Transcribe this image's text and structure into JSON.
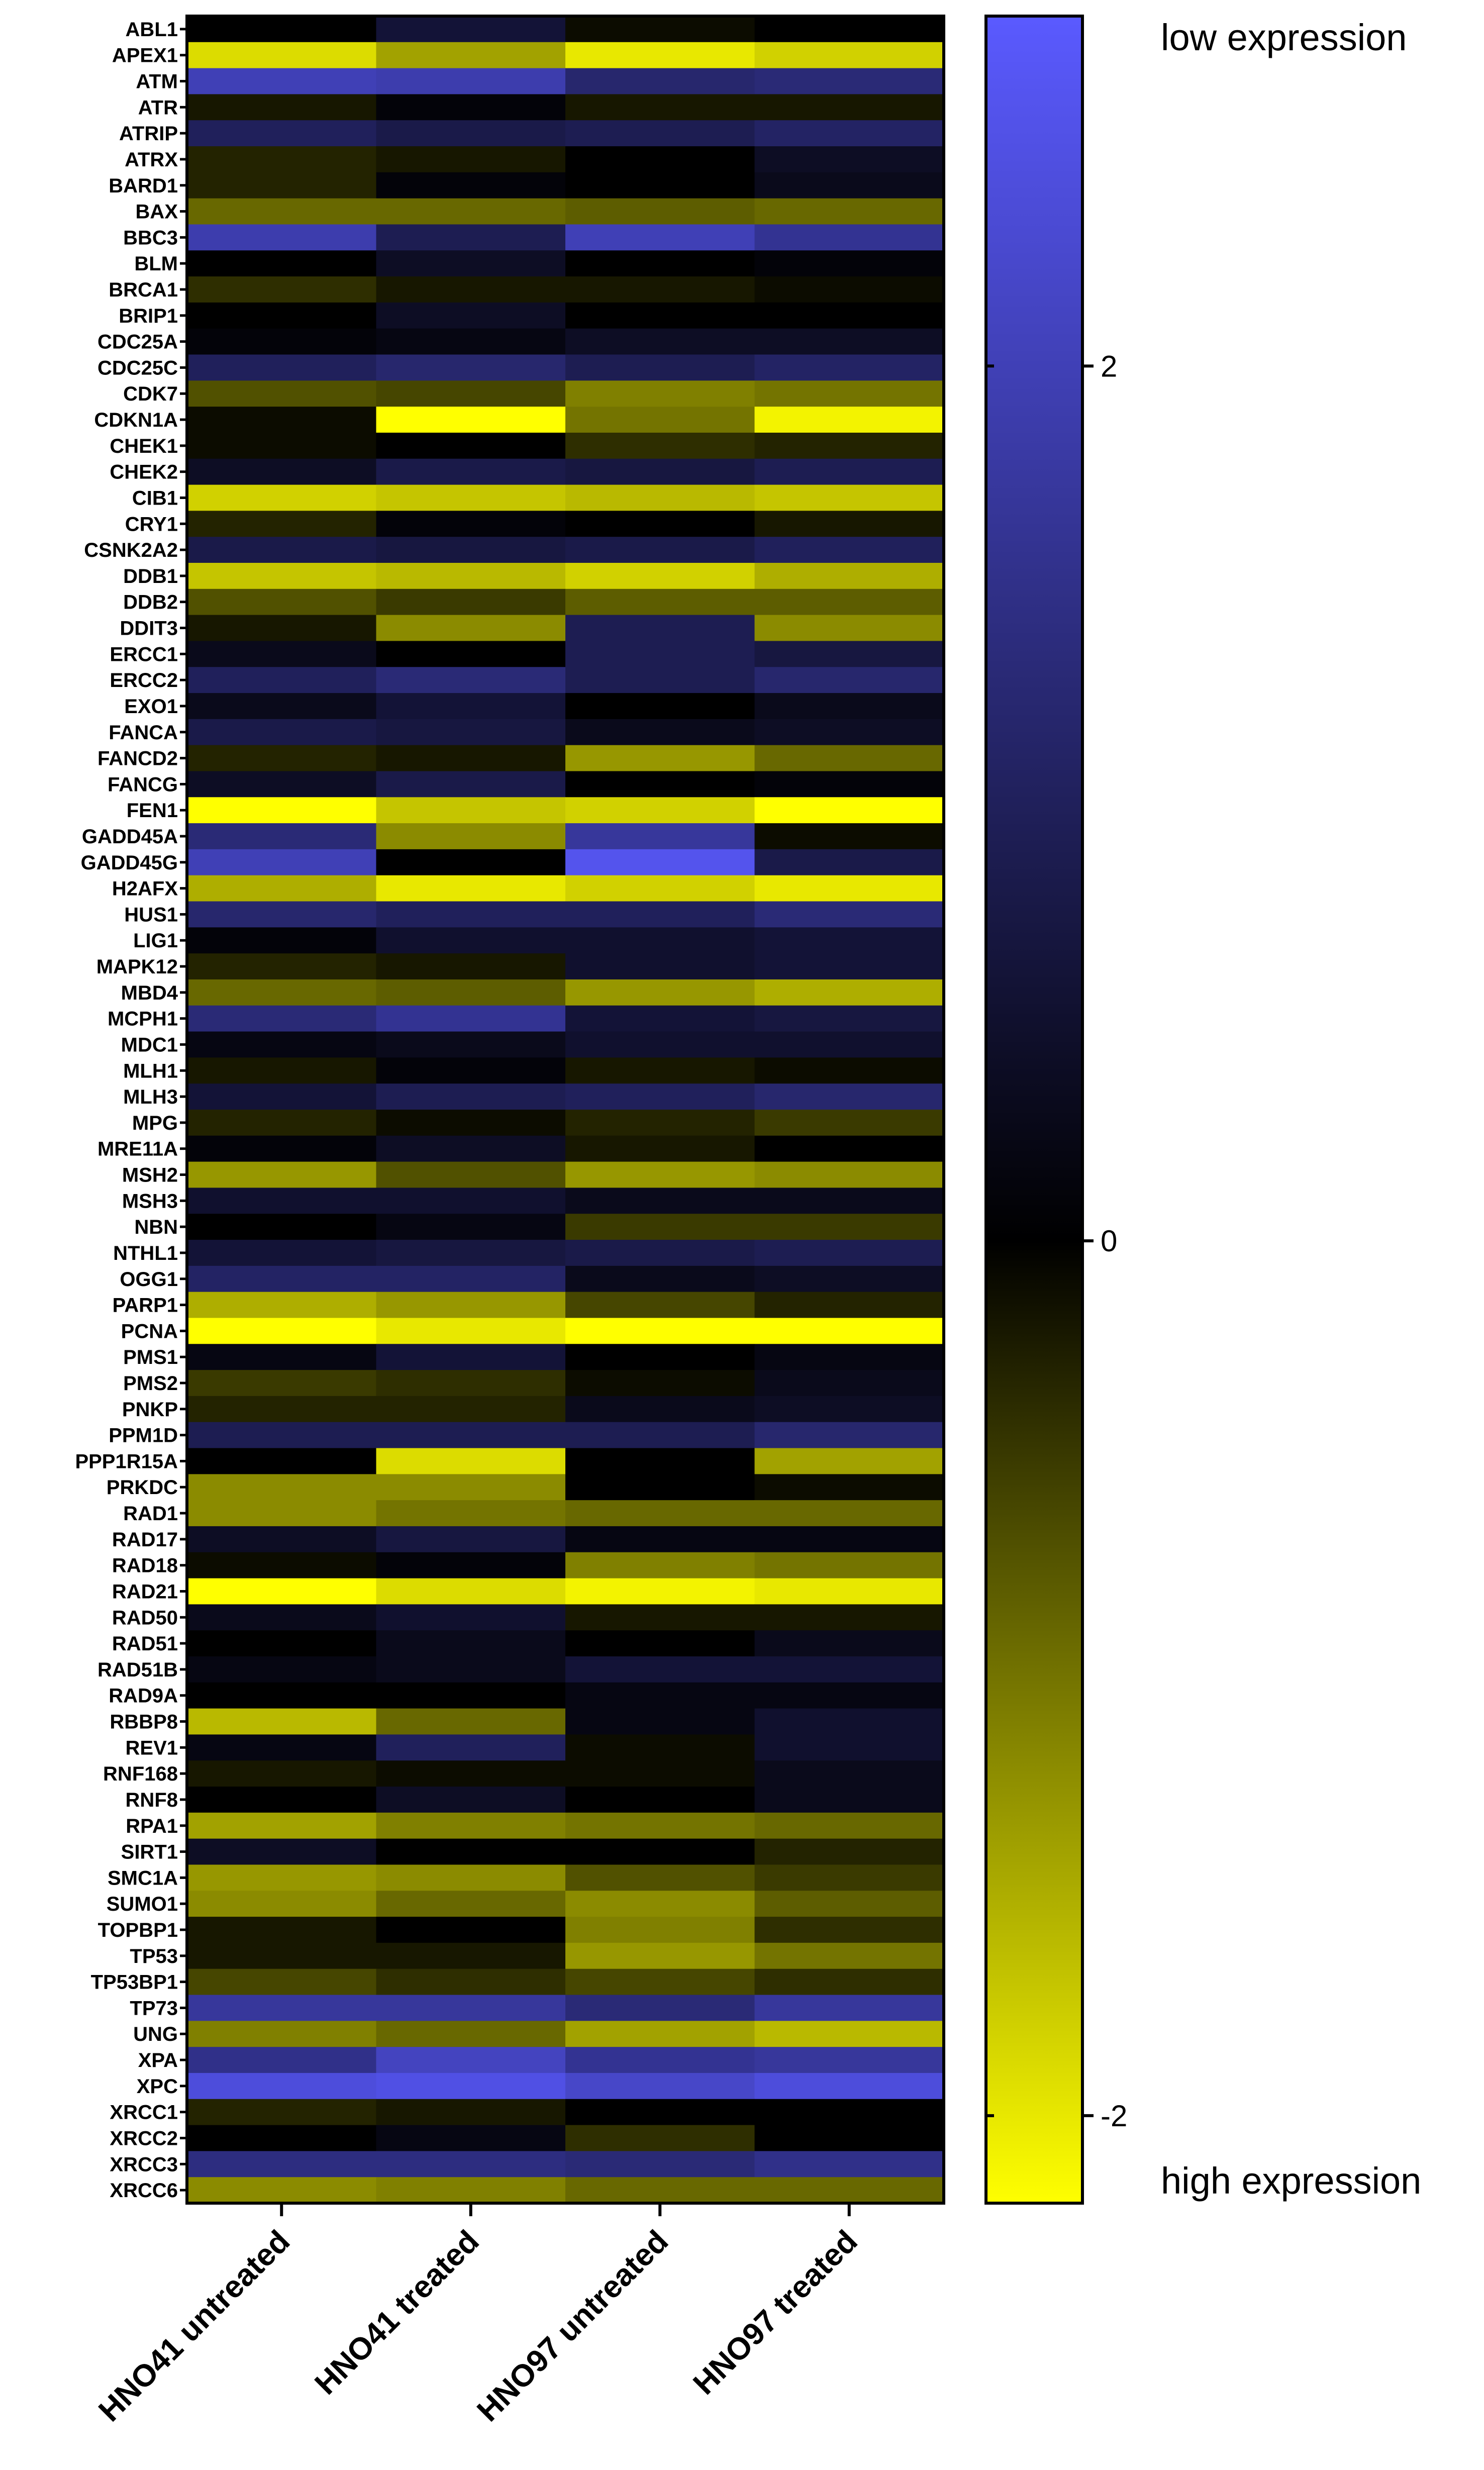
{
  "chart_data": {
    "type": "heatmap",
    "columns": [
      "HNO41 untreated",
      "HNO41 treated",
      "HNO97 untreated",
      "HNO97 treated"
    ],
    "rows": [
      "ABL1",
      "APEX1",
      "ATM",
      "ATR",
      "ATRIP",
      "ATRX",
      "BARD1",
      "BAX",
      "BBC3",
      "BLM",
      "BRCA1",
      "BRIP1",
      "CDC25A",
      "CDC25C",
      "CDK7",
      "CDKN1A",
      "CHEK1",
      "CHEK2",
      "CIB1",
      "CRY1",
      "CSNK2A2",
      "DDB1",
      "DDB2",
      "DDIT3",
      "ERCC1",
      "ERCC2",
      "EXO1",
      "FANCA",
      "FANCD2",
      "FANCG",
      "FEN1",
      "GADD45A",
      "GADD45G",
      "H2AFX",
      "HUS1",
      "LIG1",
      "MAPK12",
      "MBD4",
      "MCPH1",
      "MDC1",
      "MLH1",
      "MLH3",
      "MPG",
      "MRE11A",
      "MSH2",
      "MSH3",
      "NBN",
      "NTHL1",
      "OGG1",
      "PARP1",
      "PCNA",
      "PMS1",
      "PMS2",
      "PNKP",
      "PPM1D",
      "PPP1R15A",
      "PRKDC",
      "RAD1",
      "RAD17",
      "RAD18",
      "RAD21",
      "RAD50",
      "RAD51",
      "RAD51B",
      "RAD9A",
      "RBBP8",
      "REV1",
      "RNF168",
      "RNF8",
      "RPA1",
      "SIRT1",
      "SMC1A",
      "SUMO1",
      "TOPBP1",
      "TP53",
      "TP53BP1",
      "TP73",
      "UNG",
      "XPA",
      "XPC",
      "XRCC1",
      "XRCC2",
      "XRCC3",
      "XRCC6"
    ],
    "values": [
      [
        0.0,
        0.6,
        -0.1,
        0.0
      ],
      [
        -1.9,
        -1.4,
        -2.0,
        -1.8
      ],
      [
        2.0,
        1.9,
        1.2,
        1.3
      ],
      [
        -0.2,
        0.1,
        -0.2,
        -0.2
      ],
      [
        1.0,
        0.8,
        0.9,
        1.1
      ],
      [
        -0.3,
        -0.2,
        0.0,
        0.4
      ],
      [
        -0.3,
        0.1,
        0.0,
        0.3
      ],
      [
        -0.9,
        -0.9,
        -0.8,
        -0.9
      ],
      [
        1.9,
        0.9,
        2.0,
        1.6
      ],
      [
        0.0,
        0.4,
        0.0,
        0.1
      ],
      [
        -0.4,
        -0.2,
        -0.2,
        -0.1
      ],
      [
        0.0,
        0.4,
        0.0,
        0.0
      ],
      [
        0.1,
        0.2,
        0.4,
        0.4
      ],
      [
        1.0,
        1.2,
        0.9,
        1.1
      ],
      [
        -0.7,
        -0.6,
        -1.1,
        -1.0
      ],
      [
        -0.1,
        -2.2,
        -1.0,
        -2.1
      ],
      [
        -0.1,
        0.0,
        -0.4,
        -0.3
      ],
      [
        0.4,
        0.8,
        0.7,
        0.9
      ],
      [
        -1.8,
        -1.7,
        -1.6,
        -1.7
      ],
      [
        -0.3,
        0.1,
        0.0,
        -0.2
      ],
      [
        0.8,
        0.7,
        0.8,
        1.0
      ],
      [
        -1.7,
        -1.6,
        -1.8,
        -1.5
      ],
      [
        -0.7,
        -0.5,
        -0.8,
        -0.8
      ],
      [
        -0.2,
        -1.2,
        0.9,
        -1.2
      ],
      [
        0.3,
        0.0,
        0.9,
        0.7
      ],
      [
        1.0,
        1.3,
        0.9,
        1.2
      ],
      [
        0.3,
        0.6,
        0.0,
        0.3
      ],
      [
        0.8,
        0.7,
        0.3,
        0.4
      ],
      [
        -0.3,
        -0.2,
        -1.3,
        -0.9
      ],
      [
        0.4,
        0.8,
        0.0,
        0.1
      ],
      [
        -2.2,
        -1.7,
        -1.8,
        -2.2
      ],
      [
        1.3,
        -1.2,
        1.7,
        -0.1
      ],
      [
        2.0,
        0.0,
        2.6,
        0.8
      ],
      [
        -1.5,
        -2.0,
        -1.8,
        -2.0
      ],
      [
        1.2,
        1.0,
        1.0,
        1.3
      ],
      [
        0.1,
        0.5,
        0.5,
        0.6
      ],
      [
        -0.3,
        -0.2,
        0.5,
        0.6
      ],
      [
        -0.9,
        -0.8,
        -1.3,
        -1.5
      ],
      [
        1.3,
        1.6,
        0.6,
        0.7
      ],
      [
        0.2,
        0.3,
        0.5,
        0.5
      ],
      [
        -0.2,
        0.1,
        -0.2,
        -0.1
      ],
      [
        0.6,
        0.9,
        1.0,
        1.2
      ],
      [
        -0.3,
        -0.1,
        -0.3,
        -0.5
      ],
      [
        0.1,
        0.4,
        -0.2,
        0.0
      ],
      [
        -1.3,
        -0.7,
        -1.3,
        -1.2
      ],
      [
        0.5,
        0.5,
        0.3,
        0.3
      ],
      [
        0.0,
        0.2,
        -0.5,
        -0.5
      ],
      [
        0.6,
        0.7,
        0.8,
        0.9
      ],
      [
        1.1,
        1.1,
        0.3,
        0.4
      ],
      [
        -1.5,
        -1.3,
        -0.6,
        -0.3
      ],
      [
        -2.3,
        -2.0,
        -2.3,
        -2.2
      ],
      [
        0.2,
        0.6,
        0.0,
        0.2
      ],
      [
        -0.5,
        -0.4,
        -0.1,
        0.3
      ],
      [
        -0.3,
        -0.3,
        0.3,
        0.4
      ],
      [
        0.9,
        0.9,
        0.9,
        1.2
      ],
      [
        0.0,
        -1.9,
        0.0,
        -1.4
      ],
      [
        -1.2,
        -1.2,
        0.0,
        -0.1
      ],
      [
        -1.2,
        -1.0,
        -0.9,
        -0.9
      ],
      [
        0.4,
        0.7,
        0.2,
        0.2
      ],
      [
        -0.1,
        0.1,
        -1.1,
        -1.0
      ],
      [
        -2.2,
        -1.9,
        -2.1,
        -2.0
      ],
      [
        0.3,
        0.5,
        -0.2,
        -0.2
      ],
      [
        0.0,
        0.3,
        0.0,
        0.3
      ],
      [
        0.2,
        0.3,
        0.6,
        0.6
      ],
      [
        0.0,
        0.0,
        0.2,
        0.2
      ],
      [
        -1.6,
        -0.9,
        0.2,
        0.5
      ],
      [
        0.2,
        1.0,
        -0.1,
        0.5
      ],
      [
        -0.2,
        -0.1,
        -0.1,
        0.3
      ],
      [
        0.0,
        0.4,
        0.0,
        0.3
      ],
      [
        -1.4,
        -1.1,
        -1.0,
        -0.9
      ],
      [
        0.4,
        0.0,
        0.0,
        -0.3
      ],
      [
        -1.3,
        -1.2,
        -0.7,
        -0.5
      ],
      [
        -1.2,
        -0.9,
        -1.2,
        -0.8
      ],
      [
        -0.2,
        0.0,
        -1.1,
        -0.4
      ],
      [
        -0.2,
        -0.2,
        -1.3,
        -1.0
      ],
      [
        -0.6,
        -0.4,
        -0.6,
        -0.4
      ],
      [
        1.7,
        1.7,
        1.3,
        1.7
      ],
      [
        -1.1,
        -0.9,
        -1.4,
        -1.6
      ],
      [
        1.5,
        2.1,
        1.6,
        1.7
      ],
      [
        2.4,
        2.5,
        2.2,
        2.4
      ],
      [
        -0.3,
        -0.2,
        0.0,
        0.0
      ],
      [
        0.0,
        0.2,
        -0.4,
        0.0
      ],
      [
        1.4,
        1.4,
        1.3,
        1.5
      ],
      [
        -1.2,
        -1.1,
        -0.9,
        -0.9
      ]
    ],
    "colorbar": {
      "min": -2.2,
      "max": 2.8,
      "ticks": [
        2,
        0,
        -2
      ],
      "tick_labels": [
        "2",
        "0",
        "-2"
      ],
      "low_color": "#FFFF00",
      "mid_color": "#000000",
      "high_color": "#5A5AFF",
      "top_label": "low expression",
      "bottom_label": "high expression"
    }
  }
}
